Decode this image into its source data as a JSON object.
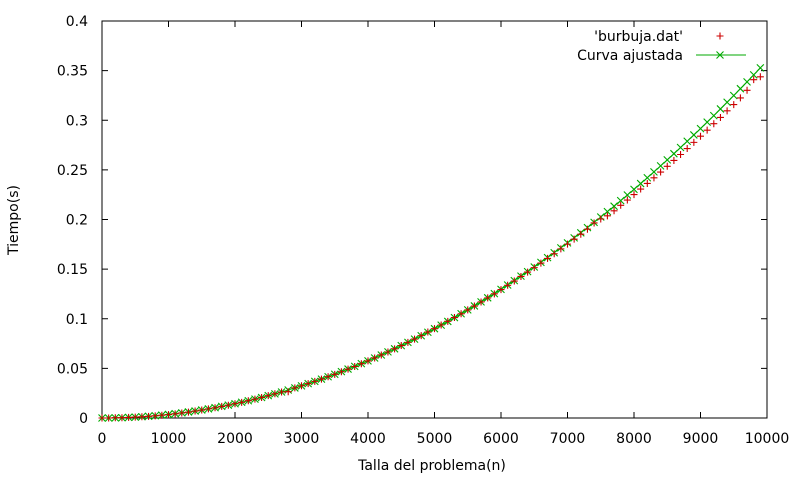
{
  "chart_data": {
    "type": "scatter",
    "title": "",
    "xlabel": "Talla del problema(n)",
    "ylabel": "Tiempo(s)",
    "xlim": [
      0,
      10000
    ],
    "ylim": [
      0,
      0.4
    ],
    "xticks": [
      0,
      1000,
      2000,
      3000,
      4000,
      5000,
      6000,
      7000,
      8000,
      9000,
      10000
    ],
    "yticks": [
      0,
      0.05,
      0.1,
      0.15,
      0.2,
      0.25,
      0.3,
      0.35,
      0.4
    ],
    "xtick_labels": [
      "0",
      "1000",
      "2000",
      "3000",
      "4000",
      "5000",
      "6000",
      "7000",
      "8000",
      "9000",
      "10000"
    ],
    "ytick_labels": [
      "0",
      "0.05",
      "0.1",
      "0.15",
      "0.2",
      "0.25",
      "0.3",
      "0.35",
      "0.4"
    ],
    "grid": false,
    "legend_position": "top-right",
    "series": [
      {
        "name": "'burbuja.dat'",
        "marker": "plus",
        "color": "#cc0000",
        "x": [
          0,
          100,
          200,
          300,
          400,
          500,
          600,
          700,
          800,
          900,
          1000,
          1100,
          1200,
          1300,
          1400,
          1500,
          1600,
          1700,
          1800,
          1900,
          2000,
          2100,
          2200,
          2300,
          2400,
          2500,
          2600,
          2700,
          2800,
          2900,
          3000,
          3100,
          3200,
          3300,
          3400,
          3500,
          3600,
          3700,
          3800,
          3900,
          4000,
          4100,
          4200,
          4300,
          4400,
          4500,
          4600,
          4700,
          4800,
          4900,
          5000,
          5100,
          5200,
          5300,
          5400,
          5500,
          5600,
          5700,
          5800,
          5900,
          6000,
          6100,
          6200,
          6300,
          6400,
          6500,
          6600,
          6700,
          6800,
          6900,
          7000,
          7100,
          7200,
          7300,
          7400,
          7500,
          7600,
          7700,
          7800,
          7900,
          8000,
          8100,
          8200,
          8300,
          8400,
          8500,
          8600,
          8700,
          8800,
          8900,
          9000,
          9100,
          9200,
          9300,
          9400,
          9500,
          9600,
          9700,
          9800,
          9900
        ],
        "y": [
          0,
          0,
          0.0003,
          0.0003,
          0.0006,
          0.0009,
          0.0012,
          0.0017,
          0.0022,
          0.0028,
          0.0034,
          0.0042,
          0.0051,
          0.0059,
          0.007,
          0.008,
          0.0092,
          0.0103,
          0.0117,
          0.0129,
          0.0144,
          0.0158,
          0.0174,
          0.019,
          0.0207,
          0.0225,
          0.0244,
          0.0262,
          0.0265,
          0.0303,
          0.0325,
          0.0346,
          0.0369,
          0.0392,
          0.0416,
          0.044,
          0.0466,
          0.0492,
          0.0519,
          0.0547,
          0.0575,
          0.0605,
          0.0635,
          0.0665,
          0.0697,
          0.073,
          0.0762,
          0.0795,
          0.083,
          0.0866,
          0.09,
          0.0937,
          0.0974,
          0.1012,
          0.105,
          0.1089,
          0.1128,
          0.1169,
          0.121,
          0.1251,
          0.1294,
          0.1337,
          0.138,
          0.1426,
          0.147,
          0.1515,
          0.1561,
          0.1608,
          0.1655,
          0.1704,
          0.1752,
          0.1802,
          0.1852,
          0.1902,
          0.1965,
          0.2005,
          0.2037,
          0.2088,
          0.2143,
          0.2196,
          0.2251,
          0.2307,
          0.2363,
          0.242,
          0.2478,
          0.2536,
          0.2595,
          0.2655,
          0.2715,
          0.2777,
          0.2839,
          0.29,
          0.2965,
          0.3028,
          0.3095,
          0.3158,
          0.3225,
          0.3302,
          0.3409,
          0.3438
        ]
      },
      {
        "name": "Curva ajustada",
        "marker": "cross",
        "color": "#00aa00",
        "x": [
          0,
          100,
          200,
          300,
          400,
          500,
          600,
          700,
          800,
          900,
          1000,
          1100,
          1200,
          1300,
          1400,
          1500,
          1600,
          1700,
          1800,
          1900,
          2000,
          2100,
          2200,
          2300,
          2400,
          2500,
          2600,
          2700,
          2800,
          2900,
          3000,
          3100,
          3200,
          3300,
          3400,
          3500,
          3600,
          3700,
          3800,
          3900,
          4000,
          4100,
          4200,
          4300,
          4400,
          4500,
          4600,
          4700,
          4800,
          4900,
          5000,
          5100,
          5200,
          5300,
          5400,
          5500,
          5600,
          5700,
          5800,
          5900,
          6000,
          6100,
          6200,
          6300,
          6400,
          6500,
          6600,
          6700,
          6800,
          6900,
          7000,
          7100,
          7200,
          7300,
          7400,
          7500,
          7600,
          7700,
          7800,
          7900,
          8000,
          8100,
          8200,
          8300,
          8400,
          8500,
          8600,
          8700,
          8800,
          8900,
          9000,
          9100,
          9200,
          9300,
          9400,
          9500,
          9600,
          9700,
          9800,
          9900
        ],
        "y": [
          0,
          3.6e-06,
          0.0001,
          0.0003,
          0.0006,
          0.0009,
          0.0013,
          0.0018,
          0.0023,
          0.0029,
          0.0036,
          0.0044,
          0.0052,
          0.0061,
          0.0071,
          0.0081,
          0.0092,
          0.0104,
          0.0117,
          0.013,
          0.0144,
          0.0159,
          0.0174,
          0.019,
          0.0207,
          0.0225,
          0.0243,
          0.0262,
          0.0282,
          0.0303,
          0.0324,
          0.0346,
          0.0369,
          0.0392,
          0.0416,
          0.0441,
          0.0467,
          0.0493,
          0.052,
          0.0548,
          0.0576,
          0.0605,
          0.0635,
          0.0666,
          0.0697,
          0.0729,
          0.0762,
          0.0795,
          0.0829,
          0.0864,
          0.09,
          0.0936,
          0.0973,
          0.1011,
          0.105,
          0.1089,
          0.1129,
          0.117,
          0.1211,
          0.1253,
          0.1296,
          0.134,
          0.1384,
          0.1429,
          0.1475,
          0.1521,
          0.1568,
          0.1616,
          0.1665,
          0.1714,
          0.1764,
          0.1815,
          0.1866,
          0.1918,
          0.1971,
          0.2025,
          0.2079,
          0.2134,
          0.219,
          0.2247,
          0.2304,
          0.2362,
          0.2421,
          0.248,
          0.254,
          0.2601,
          0.2663,
          0.2725,
          0.2788,
          0.2852,
          0.2916,
          0.2981,
          0.3047,
          0.3114,
          0.3181,
          0.3249,
          0.3318,
          0.3387,
          0.3457,
          0.3528
        ]
      }
    ]
  }
}
